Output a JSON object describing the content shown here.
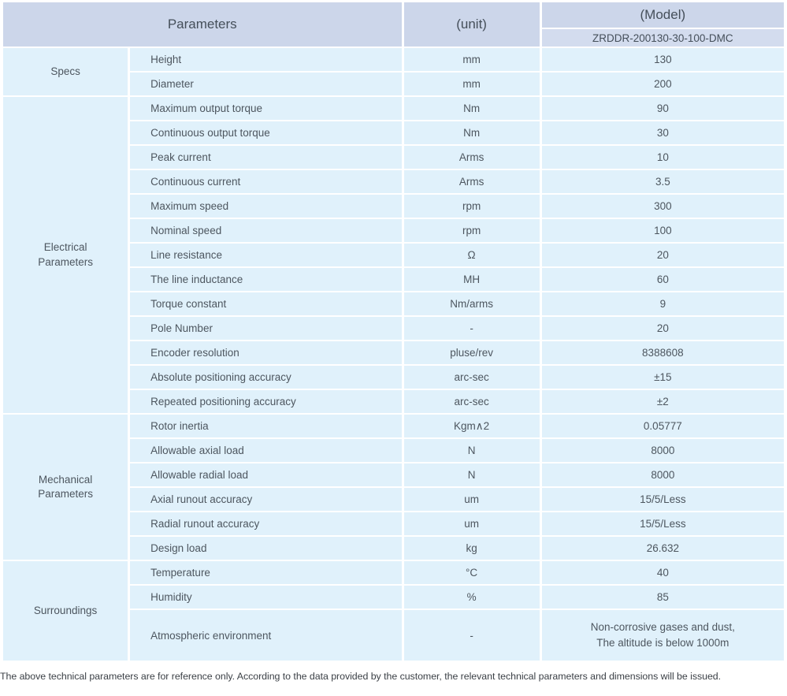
{
  "header": {
    "parameters_label": "Parameters",
    "unit_label": "(unit)",
    "model_label": "(Model)",
    "model_value": "ZRDDR-200130-30-100-DMC"
  },
  "sections": [
    {
      "label": "Specs",
      "rows": [
        {
          "param": "Height",
          "unit": "mm",
          "value": "130"
        },
        {
          "param": "Diameter",
          "unit": "mm",
          "value": "200"
        }
      ]
    },
    {
      "label": "Electrical\nParameters",
      "rows": [
        {
          "param": "Maximum output torque",
          "unit": "Nm",
          "value": "90"
        },
        {
          "param": "Continuous output torque",
          "unit": "Nm",
          "value": "30"
        },
        {
          "param": "Peak current",
          "unit": "Arms",
          "value": "10"
        },
        {
          "param": "Continuous current",
          "unit": "Arms",
          "value": "3.5"
        },
        {
          "param": "Maximum speed",
          "unit": "rpm",
          "value": "300"
        },
        {
          "param": "Nominal speed",
          "unit": "rpm",
          "value": "100"
        },
        {
          "param": "Line resistance",
          "unit": "Ω",
          "value": "20"
        },
        {
          "param": "The line inductance",
          "unit": "MH",
          "value": "60"
        },
        {
          "param": "Torque constant",
          "unit": "Nm/arms",
          "value": "9"
        },
        {
          "param": "Pole Number",
          "unit": "-",
          "value": "20"
        },
        {
          "param": "Encoder resolution",
          "unit": "pluse/rev",
          "value": "8388608"
        },
        {
          "param": "Absolute positioning accuracy",
          "unit": "arc-sec",
          "value": "±15"
        },
        {
          "param": "Repeated positioning accuracy",
          "unit": "arc-sec",
          "value": "±2"
        }
      ]
    },
    {
      "label": "Mechanical\nParameters",
      "rows": [
        {
          "param": "Rotor inertia",
          "unit": "Kgm∧2",
          "value": "0.05777"
        },
        {
          "param": "Allowable axial load",
          "unit": "N",
          "value": "8000"
        },
        {
          "param": "Allowable radial load",
          "unit": "N",
          "value": "8000"
        },
        {
          "param": "Axial runout accuracy",
          "unit": "um",
          "value": "15/5/Less"
        },
        {
          "param": "Radial runout accuracy",
          "unit": "um",
          "value": "15/5/Less"
        },
        {
          "param": "Design load",
          "unit": "kg",
          "value": "26.632"
        }
      ]
    },
    {
      "label": "Surroundings",
      "rows": [
        {
          "param": "Temperature",
          "unit": "°C",
          "value": "40"
        },
        {
          "param": "Humidity",
          "unit": "%",
          "value": "85"
        },
        {
          "param": "Atmospheric environment",
          "unit": "-",
          "value": "Non-corrosive gases and dust,\nThe altitude is below 1000m"
        }
      ]
    }
  ],
  "footer": {
    "note": "The above technical parameters are for reference only. According to the data provided by the customer, the relevant technical parameters and dimensions will be issued."
  },
  "colors": {
    "header_bg": "#ccd6ea",
    "subheader_bg": "#d3dcee",
    "cell_bg": "#e0f1fb",
    "text": "#4d565f",
    "header_text": "#454f5a",
    "footer_text": "#3c4147"
  }
}
